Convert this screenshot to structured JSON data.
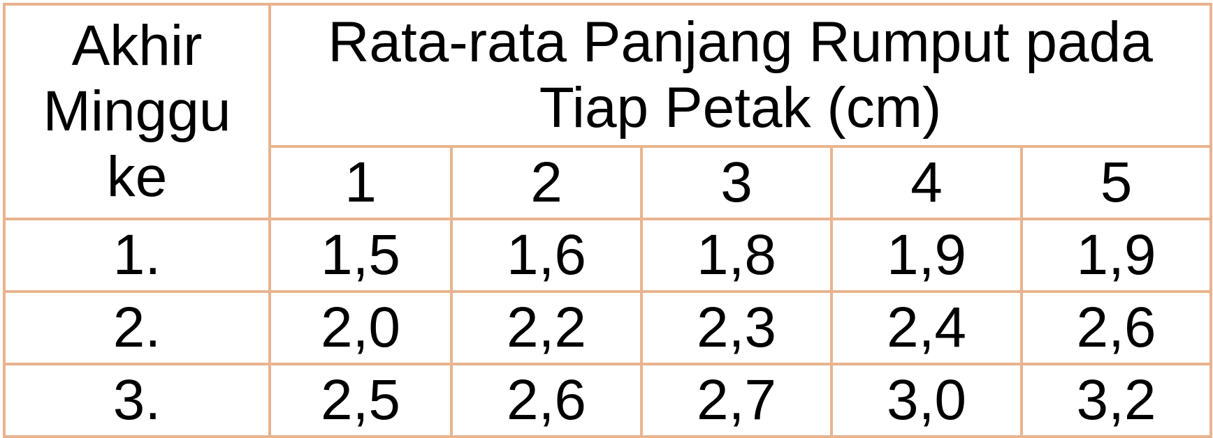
{
  "table": {
    "week_header": "Akhir Minggu ke",
    "main_header_line1": "Rata-rata Panjang Rumput pada",
    "main_header_line2": "Tiap Petak (cm)",
    "plots": [
      "1",
      "2",
      "3",
      "4",
      "5"
    ],
    "rows": [
      {
        "week": "1.",
        "values": [
          "1,5",
          "1,6",
          "1,8",
          "1,9",
          "1,9"
        ]
      },
      {
        "week": "2.",
        "values": [
          "2,0",
          "2,2",
          "2,3",
          "2,4",
          "2,6"
        ]
      },
      {
        "week": "3.",
        "values": [
          "2,5",
          "2,6",
          "2,7",
          "3,0",
          "3,2"
        ]
      }
    ]
  },
  "colors": {
    "border": "#e8b48f",
    "text": "#000000",
    "background": "#ffffff"
  }
}
